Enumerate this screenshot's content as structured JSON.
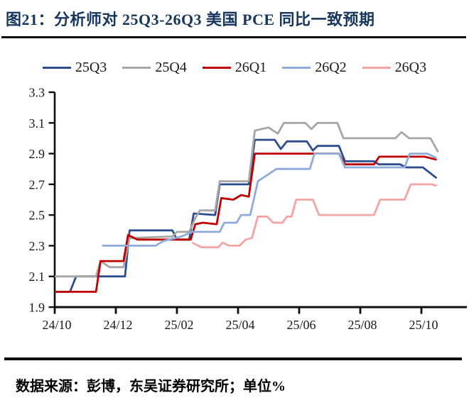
{
  "title": "图21：分析师对 25Q3-26Q3 美国 PCE 同比一致预期",
  "footer": "数据来源：彭博，东吴证券研究所；单位%",
  "chart_data": {
    "type": "line",
    "title": "分析师对 25Q3-26Q3 美国 PCE 同比一致预期",
    "xlabel": "",
    "ylabel": "",
    "unit": "%",
    "grid": false,
    "legend_position": "top",
    "x_axis": {
      "unit": "months since 2024-10",
      "tick_positions": [
        0,
        2,
        4,
        6,
        8,
        10,
        12
      ],
      "tick_labels": [
        "24/10",
        "24/12",
        "25/02",
        "25/04",
        "25/06",
        "25/08",
        "25/10"
      ],
      "range": [
        0,
        13.5
      ]
    },
    "y_axis": {
      "ticks": [
        1.9,
        2.1,
        2.3,
        2.5,
        2.7,
        2.9,
        3.1,
        3.3
      ],
      "tick_labels": [
        "1.9",
        "2.1",
        "2.3",
        "2.5",
        "2.7",
        "2.9",
        "3.1",
        "3.3"
      ],
      "range": [
        1.9,
        3.3
      ]
    },
    "series": [
      {
        "name": "25Q3",
        "color": "#2E4D8E",
        "points": [
          [
            0,
            2.0
          ],
          [
            0.5,
            2.0
          ],
          [
            0.7,
            2.1
          ],
          [
            2.3,
            2.1
          ],
          [
            2.45,
            2.4
          ],
          [
            3.85,
            2.4
          ],
          [
            4.0,
            2.34
          ],
          [
            4.4,
            2.34
          ],
          [
            4.55,
            2.51
          ],
          [
            5.25,
            2.5
          ],
          [
            5.4,
            2.7
          ],
          [
            6.35,
            2.7
          ],
          [
            6.55,
            2.99
          ],
          [
            7.2,
            2.99
          ],
          [
            7.4,
            2.93
          ],
          [
            7.6,
            2.98
          ],
          [
            8.25,
            2.98
          ],
          [
            8.45,
            2.92
          ],
          [
            8.6,
            2.95
          ],
          [
            9.3,
            2.95
          ],
          [
            9.5,
            2.85
          ],
          [
            10.45,
            2.85
          ],
          [
            10.6,
            2.83
          ],
          [
            11.3,
            2.83
          ],
          [
            11.5,
            2.81
          ],
          [
            12.05,
            2.81
          ],
          [
            12.5,
            2.74
          ]
        ]
      },
      {
        "name": "25Q4",
        "color": "#A6A6A6",
        "points": [
          [
            0,
            2.1
          ],
          [
            1.35,
            2.1
          ],
          [
            1.5,
            2.2
          ],
          [
            1.8,
            2.16
          ],
          [
            2.25,
            2.16
          ],
          [
            2.45,
            2.35
          ],
          [
            3.85,
            2.36
          ],
          [
            4.0,
            2.39
          ],
          [
            4.4,
            2.39
          ],
          [
            4.6,
            2.48
          ],
          [
            4.75,
            2.53
          ],
          [
            5.25,
            2.53
          ],
          [
            5.4,
            2.72
          ],
          [
            6.35,
            2.72
          ],
          [
            6.55,
            3.05
          ],
          [
            7.0,
            3.07
          ],
          [
            7.3,
            3.03
          ],
          [
            7.5,
            3.1
          ],
          [
            8.2,
            3.1
          ],
          [
            8.4,
            3.06
          ],
          [
            8.6,
            3.1
          ],
          [
            9.25,
            3.1
          ],
          [
            9.45,
            3.0
          ],
          [
            11.15,
            3.0
          ],
          [
            11.35,
            3.04
          ],
          [
            11.6,
            3.0
          ],
          [
            12.3,
            3.0
          ],
          [
            12.55,
            2.91
          ]
        ]
      },
      {
        "name": "26Q1",
        "color": "#C00000",
        "points": [
          [
            0,
            2.0
          ],
          [
            1.35,
            2.0
          ],
          [
            1.5,
            2.2
          ],
          [
            2.25,
            2.2
          ],
          [
            2.4,
            2.37
          ],
          [
            2.7,
            2.34
          ],
          [
            4.45,
            2.34
          ],
          [
            4.6,
            2.44
          ],
          [
            4.85,
            2.45
          ],
          [
            5.3,
            2.44
          ],
          [
            5.45,
            2.61
          ],
          [
            5.85,
            2.6
          ],
          [
            6.1,
            2.63
          ],
          [
            6.35,
            2.62
          ],
          [
            6.55,
            2.9
          ],
          [
            9.3,
            2.9
          ],
          [
            9.5,
            2.83
          ],
          [
            10.45,
            2.83
          ],
          [
            10.62,
            2.88
          ],
          [
            12.1,
            2.88
          ],
          [
            12.5,
            2.86
          ]
        ]
      },
      {
        "name": "26Q2",
        "color": "#8FAADC",
        "points": [
          [
            1.55,
            2.3
          ],
          [
            3.3,
            2.3
          ],
          [
            3.55,
            2.33
          ],
          [
            4.15,
            2.36
          ],
          [
            4.5,
            2.39
          ],
          [
            5.4,
            2.39
          ],
          [
            5.55,
            2.45
          ],
          [
            5.95,
            2.45
          ],
          [
            6.1,
            2.5
          ],
          [
            6.4,
            2.5
          ],
          [
            6.65,
            2.72
          ],
          [
            6.95,
            2.76
          ],
          [
            7.25,
            2.8
          ],
          [
            8.35,
            2.8
          ],
          [
            8.5,
            2.9
          ],
          [
            9.3,
            2.9
          ],
          [
            9.5,
            2.81
          ],
          [
            11.45,
            2.81
          ],
          [
            11.62,
            2.9
          ],
          [
            12.2,
            2.9
          ],
          [
            12.5,
            2.87
          ]
        ]
      },
      {
        "name": "26Q3",
        "color": "#F5A3A3",
        "points": [
          [
            4.5,
            2.32
          ],
          [
            4.8,
            2.29
          ],
          [
            5.35,
            2.29
          ],
          [
            5.5,
            2.32
          ],
          [
            5.7,
            2.3
          ],
          [
            6.05,
            2.3
          ],
          [
            6.25,
            2.34
          ],
          [
            6.45,
            2.35
          ],
          [
            6.65,
            2.49
          ],
          [
            6.95,
            2.49
          ],
          [
            7.15,
            2.45
          ],
          [
            7.45,
            2.45
          ],
          [
            7.6,
            2.49
          ],
          [
            7.75,
            2.49
          ],
          [
            7.9,
            2.6
          ],
          [
            8.45,
            2.6
          ],
          [
            8.65,
            2.5
          ],
          [
            10.45,
            2.5
          ],
          [
            10.65,
            2.6
          ],
          [
            11.45,
            2.6
          ],
          [
            11.65,
            2.7
          ],
          [
            12.35,
            2.7
          ],
          [
            12.5,
            2.69
          ]
        ]
      }
    ]
  },
  "style": {
    "title_color": "#17365D",
    "axis_color": "#0d0d0d",
    "tick_label_color": "#1a1a1a"
  }
}
